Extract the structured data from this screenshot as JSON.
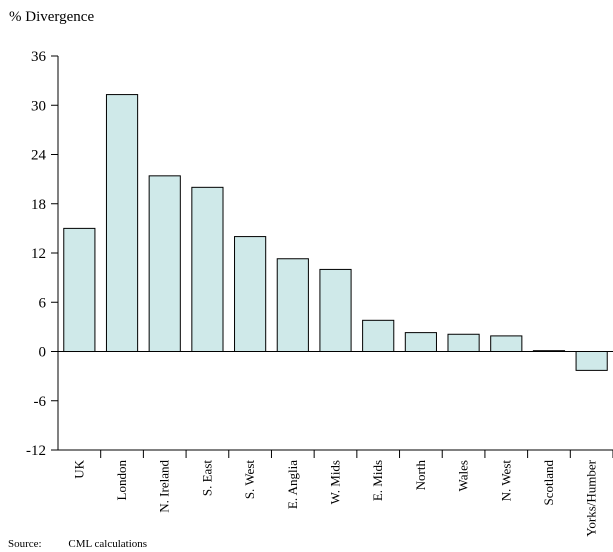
{
  "chart_data": {
    "type": "bar",
    "ylabel": "% Divergence",
    "categories": [
      "UK",
      "London",
      "N. Ireland",
      "S. East",
      "S. West",
      "E. Anglia",
      "W. Mids",
      "E. Mids",
      "North",
      "Wales",
      "N. West",
      "Scotland",
      "Yorks/Humber"
    ],
    "values": [
      15,
      31.3,
      21.4,
      20,
      14,
      11.3,
      10,
      3.8,
      2.3,
      2.1,
      1.9,
      0.1,
      -2.3
    ],
    "ylim": [
      -12,
      36
    ],
    "yticks": [
      "36",
      "30",
      "24",
      "18",
      "12",
      "6",
      "0",
      "-6",
      "-12"
    ],
    "bar_color": "#cfe9e9",
    "grid": false
  },
  "source": {
    "label": "Source:",
    "value": "CML calculations"
  }
}
